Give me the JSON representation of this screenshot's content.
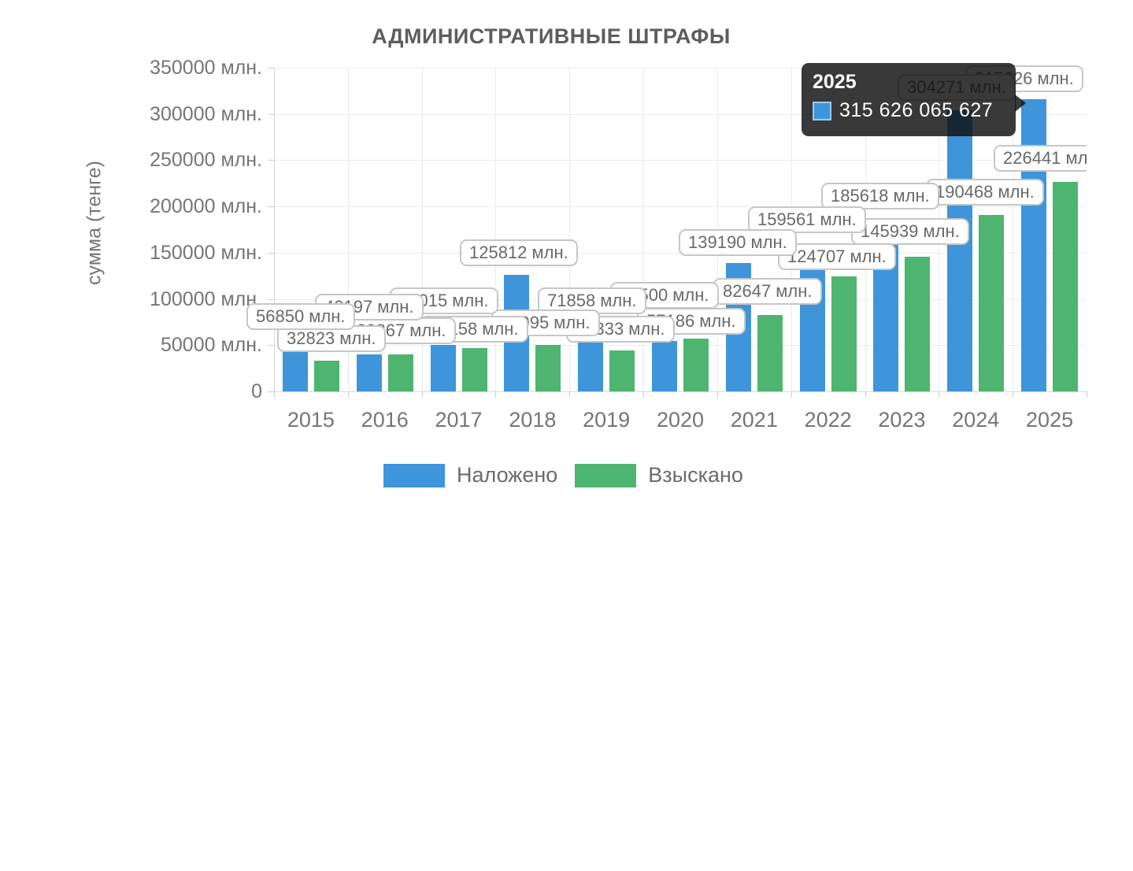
{
  "chart_data": {
    "type": "bar",
    "title": "АДМИНИСТРАТИВНЫЕ ШТРАФЫ",
    "ylabel": "сумма (тенге)",
    "unit_suffix": " млн.",
    "categories": [
      "2015",
      "2016",
      "2017",
      "2018",
      "2019",
      "2020",
      "2021",
      "2022",
      "2023",
      "2024",
      "2025"
    ],
    "series": [
      {
        "name": "Наложено",
        "color": "#3E95DA",
        "values": [
          56850,
          40197,
          50015,
          125812,
          71858,
          54500,
          139190,
          159561,
          185618,
          304271,
          315626
        ]
      },
      {
        "name": "Взыскано",
        "color": "#4DB56F",
        "values": [
          32823,
          39867,
          47158,
          49995,
          44333,
          57186,
          82647,
          124707,
          145939,
          190468,
          226441
        ]
      }
    ],
    "ylim": [
      0,
      350000
    ],
    "y_tick_labels": [
      "350000 млн.",
      "300000 млн.",
      "250000 млн.",
      "200000 млн.",
      "150000 млн.",
      "100000 млн.",
      "50000 млн.",
      "0"
    ],
    "grid": true,
    "legend_position": "bottom"
  },
  "tooltip": {
    "title": "2025",
    "value": "315 626 065 627",
    "series_color": "#3E95DA"
  }
}
